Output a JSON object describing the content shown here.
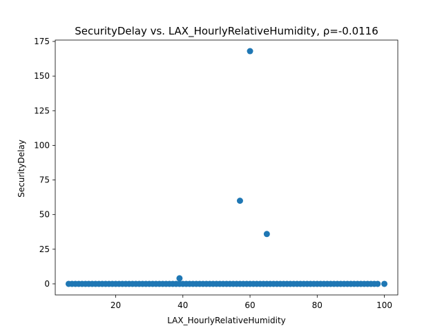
{
  "chart_data": {
    "type": "scatter",
    "title": "SecurityDelay vs. LAX_HourlyRelativeHumidity, ρ=-0.0116",
    "xlabel": "LAX_HourlyRelativeHumidity",
    "ylabel": "SecurityDelay",
    "xlim": [
      2,
      104
    ],
    "ylim": [
      -8,
      176
    ],
    "xticks": [
      20,
      40,
      60,
      80,
      100
    ],
    "yticks": [
      0,
      25,
      50,
      75,
      100,
      125,
      150,
      175
    ],
    "grid": false,
    "marker_color": "#1f77b4",
    "points": [
      {
        "x": 60,
        "y": 168
      },
      {
        "x": 57,
        "y": 60
      },
      {
        "x": 65,
        "y": 36
      },
      {
        "x": 39,
        "y": 4
      },
      {
        "x": 6,
        "y": 0
      },
      {
        "x": 7,
        "y": 0
      },
      {
        "x": 8,
        "y": 0
      },
      {
        "x": 9,
        "y": 0
      },
      {
        "x": 10,
        "y": 0
      },
      {
        "x": 11,
        "y": 0
      },
      {
        "x": 12,
        "y": 0
      },
      {
        "x": 13,
        "y": 0
      },
      {
        "x": 14,
        "y": 0
      },
      {
        "x": 15,
        "y": 0
      },
      {
        "x": 16,
        "y": 0
      },
      {
        "x": 17,
        "y": 0
      },
      {
        "x": 18,
        "y": 0
      },
      {
        "x": 19,
        "y": 0
      },
      {
        "x": 20,
        "y": 0
      },
      {
        "x": 21,
        "y": 0
      },
      {
        "x": 22,
        "y": 0
      },
      {
        "x": 23,
        "y": 0
      },
      {
        "x": 24,
        "y": 0
      },
      {
        "x": 25,
        "y": 0
      },
      {
        "x": 26,
        "y": 0
      },
      {
        "x": 27,
        "y": 0
      },
      {
        "x": 28,
        "y": 0
      },
      {
        "x": 29,
        "y": 0
      },
      {
        "x": 30,
        "y": 0
      },
      {
        "x": 31,
        "y": 0
      },
      {
        "x": 32,
        "y": 0
      },
      {
        "x": 33,
        "y": 0
      },
      {
        "x": 34,
        "y": 0
      },
      {
        "x": 35,
        "y": 0
      },
      {
        "x": 36,
        "y": 0
      },
      {
        "x": 37,
        "y": 0
      },
      {
        "x": 38,
        "y": 0
      },
      {
        "x": 39,
        "y": 0
      },
      {
        "x": 40,
        "y": 0
      },
      {
        "x": 41,
        "y": 0
      },
      {
        "x": 42,
        "y": 0
      },
      {
        "x": 43,
        "y": 0
      },
      {
        "x": 44,
        "y": 0
      },
      {
        "x": 45,
        "y": 0
      },
      {
        "x": 46,
        "y": 0
      },
      {
        "x": 47,
        "y": 0
      },
      {
        "x": 48,
        "y": 0
      },
      {
        "x": 49,
        "y": 0
      },
      {
        "x": 50,
        "y": 0
      },
      {
        "x": 51,
        "y": 0
      },
      {
        "x": 52,
        "y": 0
      },
      {
        "x": 53,
        "y": 0
      },
      {
        "x": 54,
        "y": 0
      },
      {
        "x": 55,
        "y": 0
      },
      {
        "x": 56,
        "y": 0
      },
      {
        "x": 57,
        "y": 0
      },
      {
        "x": 58,
        "y": 0
      },
      {
        "x": 59,
        "y": 0
      },
      {
        "x": 60,
        "y": 0
      },
      {
        "x": 61,
        "y": 0
      },
      {
        "x": 62,
        "y": 0
      },
      {
        "x": 63,
        "y": 0
      },
      {
        "x": 64,
        "y": 0
      },
      {
        "x": 65,
        "y": 0
      },
      {
        "x": 66,
        "y": 0
      },
      {
        "x": 67,
        "y": 0
      },
      {
        "x": 68,
        "y": 0
      },
      {
        "x": 69,
        "y": 0
      },
      {
        "x": 70,
        "y": 0
      },
      {
        "x": 71,
        "y": 0
      },
      {
        "x": 72,
        "y": 0
      },
      {
        "x": 73,
        "y": 0
      },
      {
        "x": 74,
        "y": 0
      },
      {
        "x": 75,
        "y": 0
      },
      {
        "x": 76,
        "y": 0
      },
      {
        "x": 77,
        "y": 0
      },
      {
        "x": 78,
        "y": 0
      },
      {
        "x": 79,
        "y": 0
      },
      {
        "x": 80,
        "y": 0
      },
      {
        "x": 81,
        "y": 0
      },
      {
        "x": 82,
        "y": 0
      },
      {
        "x": 83,
        "y": 0
      },
      {
        "x": 84,
        "y": 0
      },
      {
        "x": 85,
        "y": 0
      },
      {
        "x": 86,
        "y": 0
      },
      {
        "x": 87,
        "y": 0
      },
      {
        "x": 88,
        "y": 0
      },
      {
        "x": 89,
        "y": 0
      },
      {
        "x": 90,
        "y": 0
      },
      {
        "x": 91,
        "y": 0
      },
      {
        "x": 92,
        "y": 0
      },
      {
        "x": 93,
        "y": 0
      },
      {
        "x": 94,
        "y": 0
      },
      {
        "x": 95,
        "y": 0
      },
      {
        "x": 96,
        "y": 0
      },
      {
        "x": 97,
        "y": 0
      },
      {
        "x": 98,
        "y": 0
      },
      {
        "x": 100,
        "y": 0
      }
    ]
  }
}
